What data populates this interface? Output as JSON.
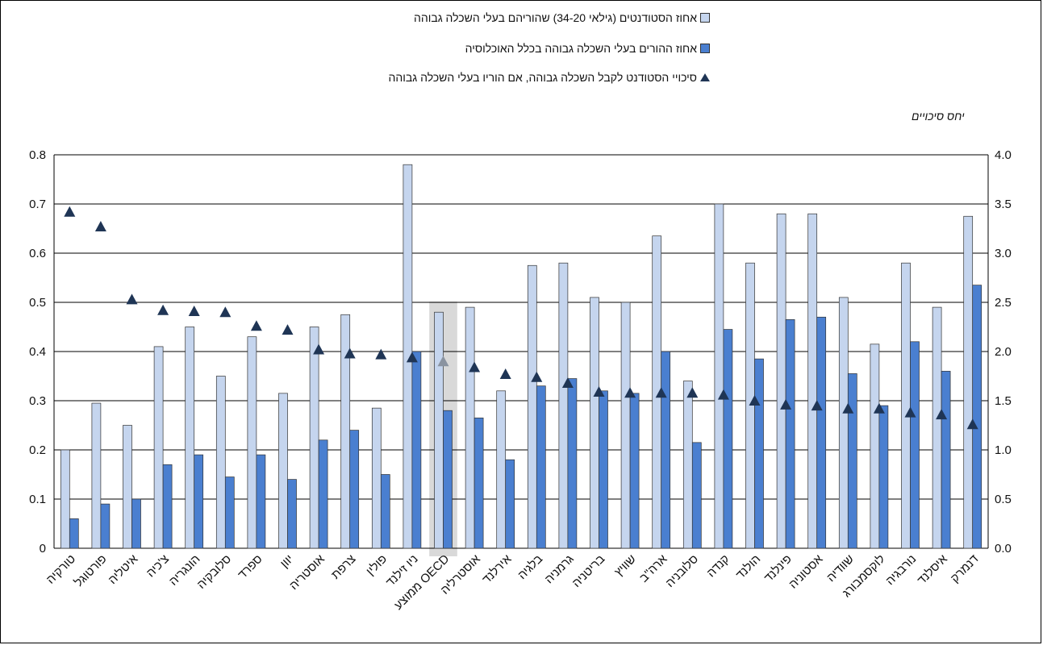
{
  "chart_data": {
    "type": "bar",
    "categories": [
      "טורקיה",
      "פורטוגל",
      "איטליה",
      "צ'כיה",
      "הונגריה",
      "סלובקיה",
      "ספרד",
      "יוון",
      "אוסטריה",
      "צרפת",
      "פולין",
      "ניו זילנד",
      "ממוצע OECD",
      "אוסטרליה",
      "אירלנד",
      "בלגיה",
      "גרמניה",
      "בריטניה",
      "שוויץ",
      "ארה\"ב",
      "סלובניה",
      "קנדה",
      "הולנד",
      "פינלנד",
      "אסטוניה",
      "שוודיה",
      "לוקסמבורג",
      "נורבגיה",
      "איסלנד",
      "דנמרק"
    ],
    "series": [
      {
        "name": "אחוז הסטודנטים (גילאי 34-20) שהוריהם בעלי השכלה גבוהה",
        "type": "bar",
        "axis": "left",
        "color": "#c5d5ee",
        "values": [
          0.2,
          0.295,
          0.25,
          0.41,
          0.45,
          0.35,
          0.43,
          0.315,
          0.45,
          0.475,
          0.285,
          0.78,
          0.48,
          0.49,
          0.32,
          0.575,
          0.58,
          0.51,
          0.5,
          0.635,
          0.34,
          0.7,
          0.58,
          0.68,
          0.68,
          0.51,
          0.415,
          0.58,
          0.49,
          0.675
        ]
      },
      {
        "name": "אחוז ההורים בעלי השכלה גבוהה בכלל האוכלוסיה",
        "type": "bar",
        "axis": "left",
        "color": "#4a7fd0",
        "values": [
          0.06,
          0.09,
          0.1,
          0.17,
          0.19,
          0.145,
          0.19,
          0.14,
          0.22,
          0.24,
          0.15,
          0.4,
          0.28,
          0.265,
          0.18,
          0.33,
          0.345,
          0.32,
          0.315,
          0.4,
          0.215,
          0.445,
          0.385,
          0.465,
          0.47,
          0.355,
          0.29,
          0.42,
          0.36,
          0.535
        ]
      },
      {
        "name": "סיכויי הסטודנט לקבל השכלה גבוהה, אם הוריו בעלי השכלה גבוהה",
        "type": "marker",
        "axis": "right",
        "color": "#1f3555",
        "values": [
          3.42,
          3.27,
          2.53,
          2.42,
          2.41,
          2.4,
          2.26,
          2.22,
          2.02,
          1.98,
          1.97,
          1.94,
          1.9,
          1.84,
          1.77,
          1.74,
          1.68,
          1.59,
          1.58,
          1.58,
          1.58,
          1.56,
          1.5,
          1.46,
          1.45,
          1.42,
          1.42,
          1.38,
          1.36,
          1.26
        ]
      }
    ],
    "highlight_category": "ממוצע OECD",
    "y_left": {
      "min": 0,
      "max": 0.8,
      "ticks": [
        "0",
        "0.1",
        "0.2",
        "0.3",
        "0.4",
        "0.5",
        "0.6",
        "0.7",
        "0.8"
      ]
    },
    "y_right": {
      "min": 0,
      "max": 4.0,
      "title": "יחס סיכויים",
      "ticks": [
        "0.0",
        "0.5",
        "1.0",
        "1.5",
        "2.0",
        "2.5",
        "3.0",
        "3.5",
        "4.0"
      ]
    },
    "grid": true,
    "legend_position": "top"
  },
  "legend": {
    "item1": "אחוז הסטודנטים (גילאי 34-20) שהוריהם בעלי השכלה גבוהה",
    "item2": "אחוז ההורים בעלי השכלה גבוהה בכלל האוכלוסיה",
    "item3": "סיכויי הסטודנט לקבל השכלה גבוהה, אם הוריו בעלי השכלה גבוהה"
  },
  "colors": {
    "bar_light": "#c5d5ee",
    "bar_dark": "#4a7fd0",
    "marker": "#1f3555",
    "highlight": "#d9d9d9"
  }
}
